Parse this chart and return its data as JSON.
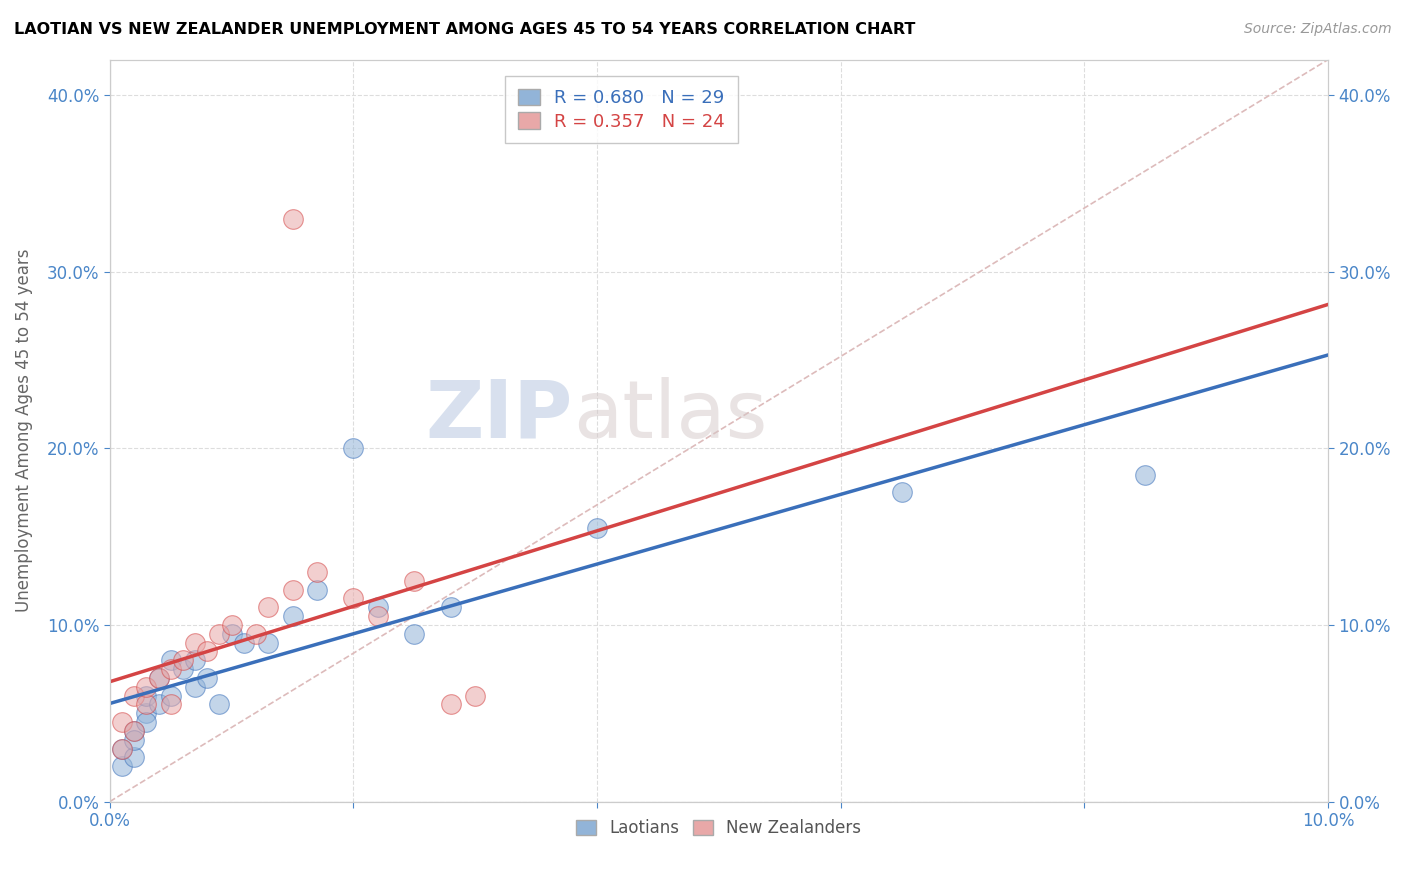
{
  "title": "LAOTIAN VS NEW ZEALANDER UNEMPLOYMENT AMONG AGES 45 TO 54 YEARS CORRELATION CHART",
  "source": "Source: ZipAtlas.com",
  "ylabel": "Unemployment Among Ages 45 to 54 years",
  "xlim": [
    0.0,
    0.1
  ],
  "ylim": [
    0.0,
    0.42
  ],
  "yticks": [
    0.0,
    0.1,
    0.2,
    0.3,
    0.4
  ],
  "xticks_minor": [
    0.02,
    0.04,
    0.06,
    0.08
  ],
  "legend_labels": [
    "Laotians",
    "New Zealanders"
  ],
  "legend_R": [
    "R = 0.680",
    "N = 29"
  ],
  "legend_R2": [
    "R = 0.357",
    "N = 24"
  ],
  "blue_color": "#92b4d8",
  "pink_color": "#e8a8a8",
  "blue_line_color": "#3a6fba",
  "pink_line_color": "#d44444",
  "ref_line_color": "#cccccc",
  "watermark_zip": "ZIP",
  "watermark_atlas": "atlas",
  "laotian_x": [
    0.001,
    0.001,
    0.002,
    0.002,
    0.002,
    0.003,
    0.003,
    0.003,
    0.004,
    0.004,
    0.005,
    0.005,
    0.006,
    0.007,
    0.007,
    0.008,
    0.009,
    0.01,
    0.011,
    0.013,
    0.015,
    0.017,
    0.02,
    0.022,
    0.025,
    0.028,
    0.04,
    0.065,
    0.085
  ],
  "laotian_y": [
    0.02,
    0.03,
    0.025,
    0.04,
    0.035,
    0.05,
    0.045,
    0.06,
    0.055,
    0.07,
    0.06,
    0.08,
    0.075,
    0.065,
    0.08,
    0.07,
    0.055,
    0.095,
    0.09,
    0.09,
    0.105,
    0.12,
    0.2,
    0.11,
    0.095,
    0.11,
    0.155,
    0.175,
    0.185
  ],
  "nz_x": [
    0.001,
    0.001,
    0.002,
    0.002,
    0.003,
    0.003,
    0.004,
    0.005,
    0.005,
    0.006,
    0.007,
    0.008,
    0.009,
    0.01,
    0.012,
    0.013,
    0.015,
    0.017,
    0.02,
    0.022,
    0.025,
    0.015,
    0.028,
    0.03
  ],
  "nz_y": [
    0.03,
    0.045,
    0.04,
    0.06,
    0.055,
    0.065,
    0.07,
    0.055,
    0.075,
    0.08,
    0.09,
    0.085,
    0.095,
    0.1,
    0.095,
    0.11,
    0.12,
    0.13,
    0.115,
    0.105,
    0.125,
    0.33,
    0.055,
    0.06
  ]
}
